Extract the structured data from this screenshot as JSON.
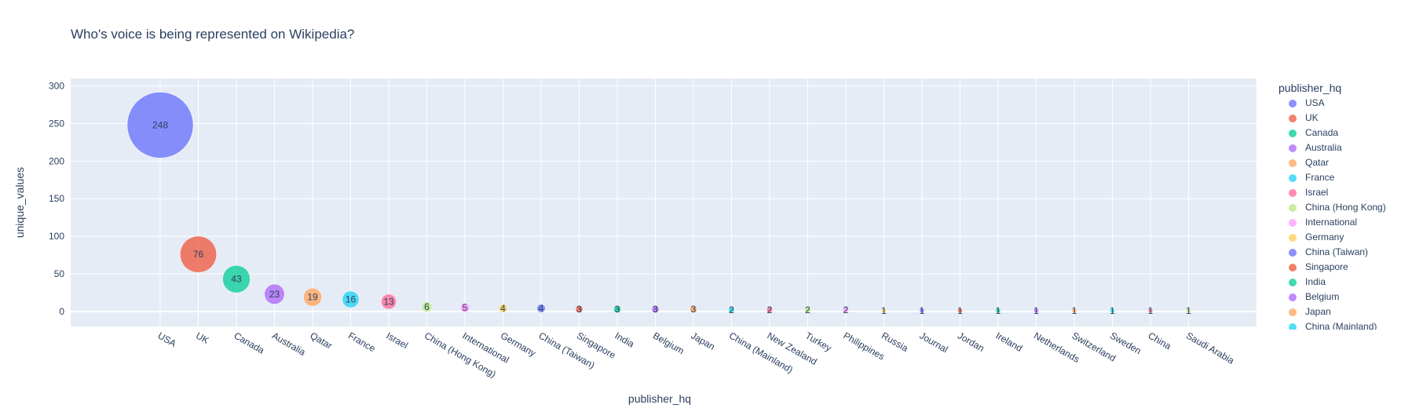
{
  "chart_data": {
    "type": "scatter",
    "title": "Who's voice is being represented on Wikipedia?",
    "xlabel": "publisher_hq",
    "ylabel": "unique_values",
    "ylim": [
      -20,
      310
    ],
    "yticks": [
      0,
      50,
      100,
      150,
      200,
      250,
      300
    ],
    "grid": true,
    "legend_position": "right",
    "legend_title": "publisher_hq",
    "categories": [
      "USA",
      "UK",
      "Canada",
      "Australia",
      "Qatar",
      "France",
      "Israel",
      "China (Hong Kong)",
      "International",
      "Germany",
      "China (Taiwan)",
      "Singapore",
      "India",
      "Belgium",
      "Japan",
      "China (Mainland)",
      "New Zealand",
      "Turkey",
      "Philippines",
      "Russia",
      "Journal",
      "Jordan",
      "Ireland",
      "Netherlands",
      "Switzerland",
      "Sweden",
      "China",
      "Saudi Arabia"
    ],
    "values": [
      248,
      76,
      43,
      23,
      19,
      16,
      13,
      6,
      5,
      4,
      4,
      3,
      3,
      3,
      3,
      2,
      2,
      2,
      2,
      1,
      1,
      1,
      1,
      1,
      1,
      1,
      1,
      1
    ],
    "colors": [
      "#636efa",
      "#EF553B",
      "#00cc96",
      "#ab63fa",
      "#FFA15A",
      "#19d3f3",
      "#FF6692",
      "#B6E880",
      "#FF97FF",
      "#FECB52"
    ],
    "legend_visible": [
      "USA",
      "UK",
      "Canada",
      "Australia",
      "Qatar",
      "France",
      "Israel",
      "China (Hong Kong)",
      "International",
      "Germany",
      "China (Taiwan)",
      "Singapore",
      "India",
      "Belgium",
      "Japan",
      "China (Mainland)"
    ]
  }
}
